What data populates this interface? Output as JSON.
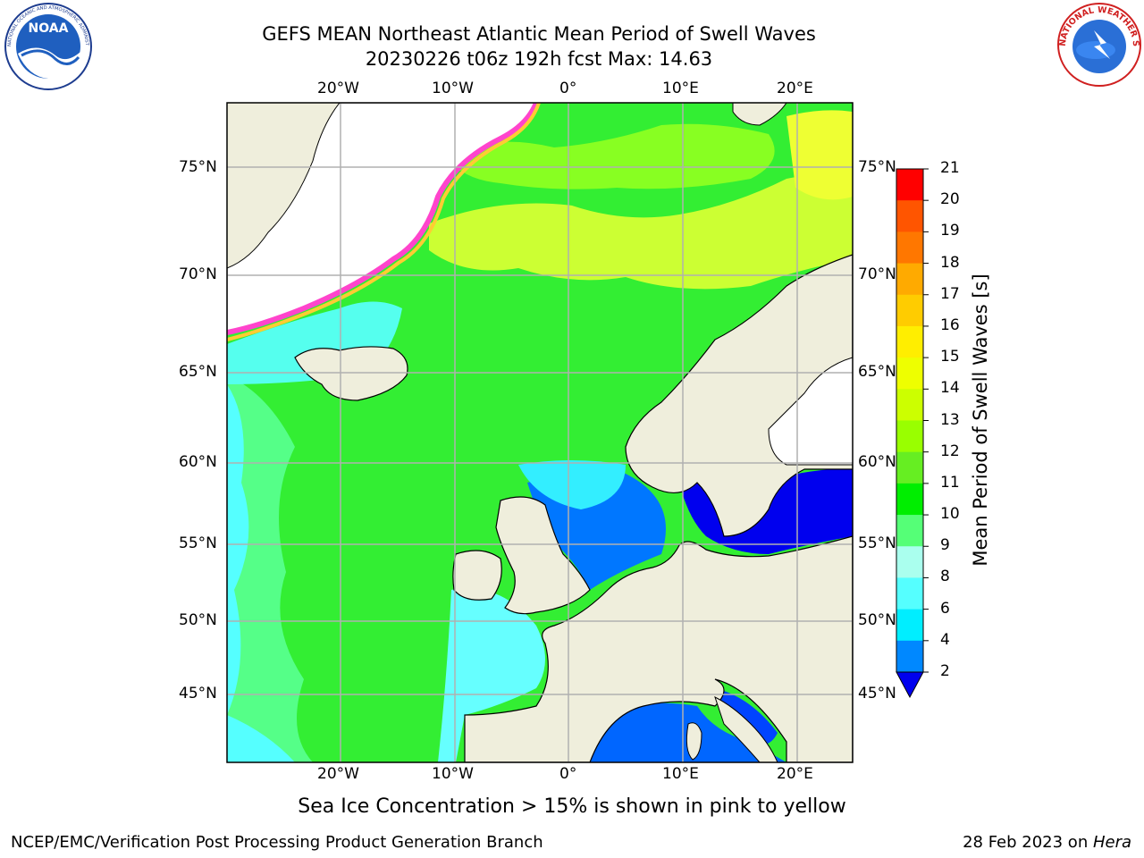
{
  "title_line1": "GEFS MEAN Northeast Atlantic Mean Period of Swell Waves",
  "title_line2": "20230226 t06z 192h fcst   Max: 14.63",
  "subtitle": "Sea Ice Concentration > 15% is shown in pink to yellow",
  "footer_left": "NCEP/EMC/Verification Post Processing Product Generation Branch",
  "footer_right_date": "28 Feb 2023 on ",
  "footer_right_machine": "Hera",
  "logos": {
    "noara_text": "NOAA",
    "noaa_ring": "NATIONAL OCEANIC AND ATMOSPHERIC ADMINISTRATION · U.S. DEPARTMENT OF COMMERCE",
    "nws_ring": "NATIONAL WEATHER SERVICE"
  },
  "map": {
    "lon_labels": [
      "20°W",
      "10°W",
      "0°",
      "10°E",
      "20°E"
    ],
    "lat_labels": [
      "75°N",
      "70°N",
      "65°N",
      "60°N",
      "55°N",
      "50°N",
      "45°N"
    ],
    "colors": {
      "land": "#efeedc",
      "ice_free_land": "#ffffff",
      "grid": "#b0b0b0"
    }
  },
  "colorbar": {
    "label": "Mean Period of Swell Waves [s]",
    "ticks": [
      "21",
      "20",
      "19",
      "18",
      "17",
      "16",
      "15",
      "14",
      "13",
      "12",
      "11",
      "10",
      "9",
      "8",
      "6",
      "4",
      "2"
    ],
    "colors": [
      "#ff0000",
      "#ff3300",
      "#ff5500",
      "#ff7700",
      "#ffaa00",
      "#ffcc00",
      "#ffee00",
      "#eeff00",
      "#ccff00",
      "#99ff00",
      "#66ee22",
      "#00ee00",
      "#55ff77",
      "#aaffee",
      "#55ffff",
      "#00eeff",
      "#0088ff",
      "#0000ff"
    ],
    "extend_color": "#0000ee"
  }
}
